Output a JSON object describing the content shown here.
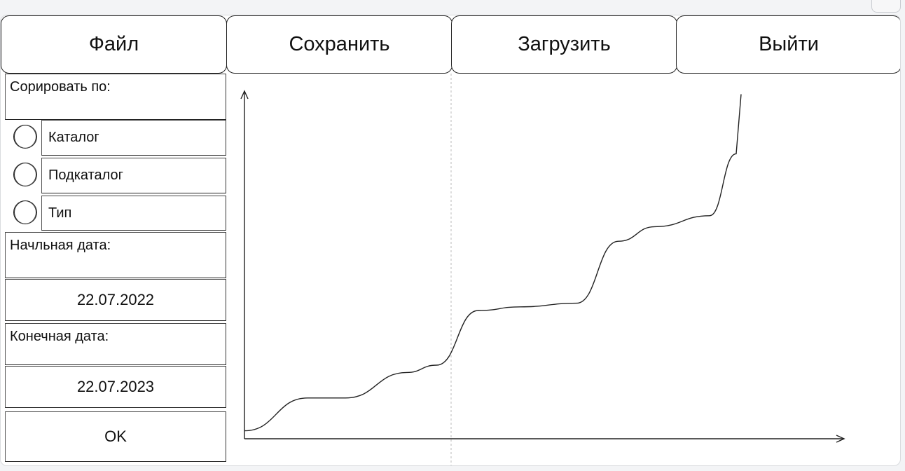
{
  "menu": {
    "file_label": "Файл",
    "save_label": "Сохранить",
    "load_label": "Загрузить",
    "exit_label": "Выйти"
  },
  "sidebar": {
    "sort_label": "Сорировать по:",
    "options": [
      {
        "label": "Каталог"
      },
      {
        "label": "Подкаталог"
      },
      {
        "label": "Тип"
      }
    ],
    "start_date_label": "Начльная дата:",
    "start_date_value": "22.07.2022",
    "end_date_label": "Конечная дата:",
    "end_date_value": "22.07.2023",
    "ok_label": "OK"
  },
  "chart_data": {
    "type": "line",
    "title": "",
    "xlabel": "",
    "ylabel": "",
    "series": [
      {
        "values": [
          0.2,
          1.1,
          1.1,
          1.8,
          2.0,
          3.5,
          3.6,
          3.7,
          5.4,
          5.8,
          6.1,
          7.8
        ]
      }
    ]
  },
  "colors": {
    "stroke": "#222222",
    "divider": "#bbbbbb"
  }
}
